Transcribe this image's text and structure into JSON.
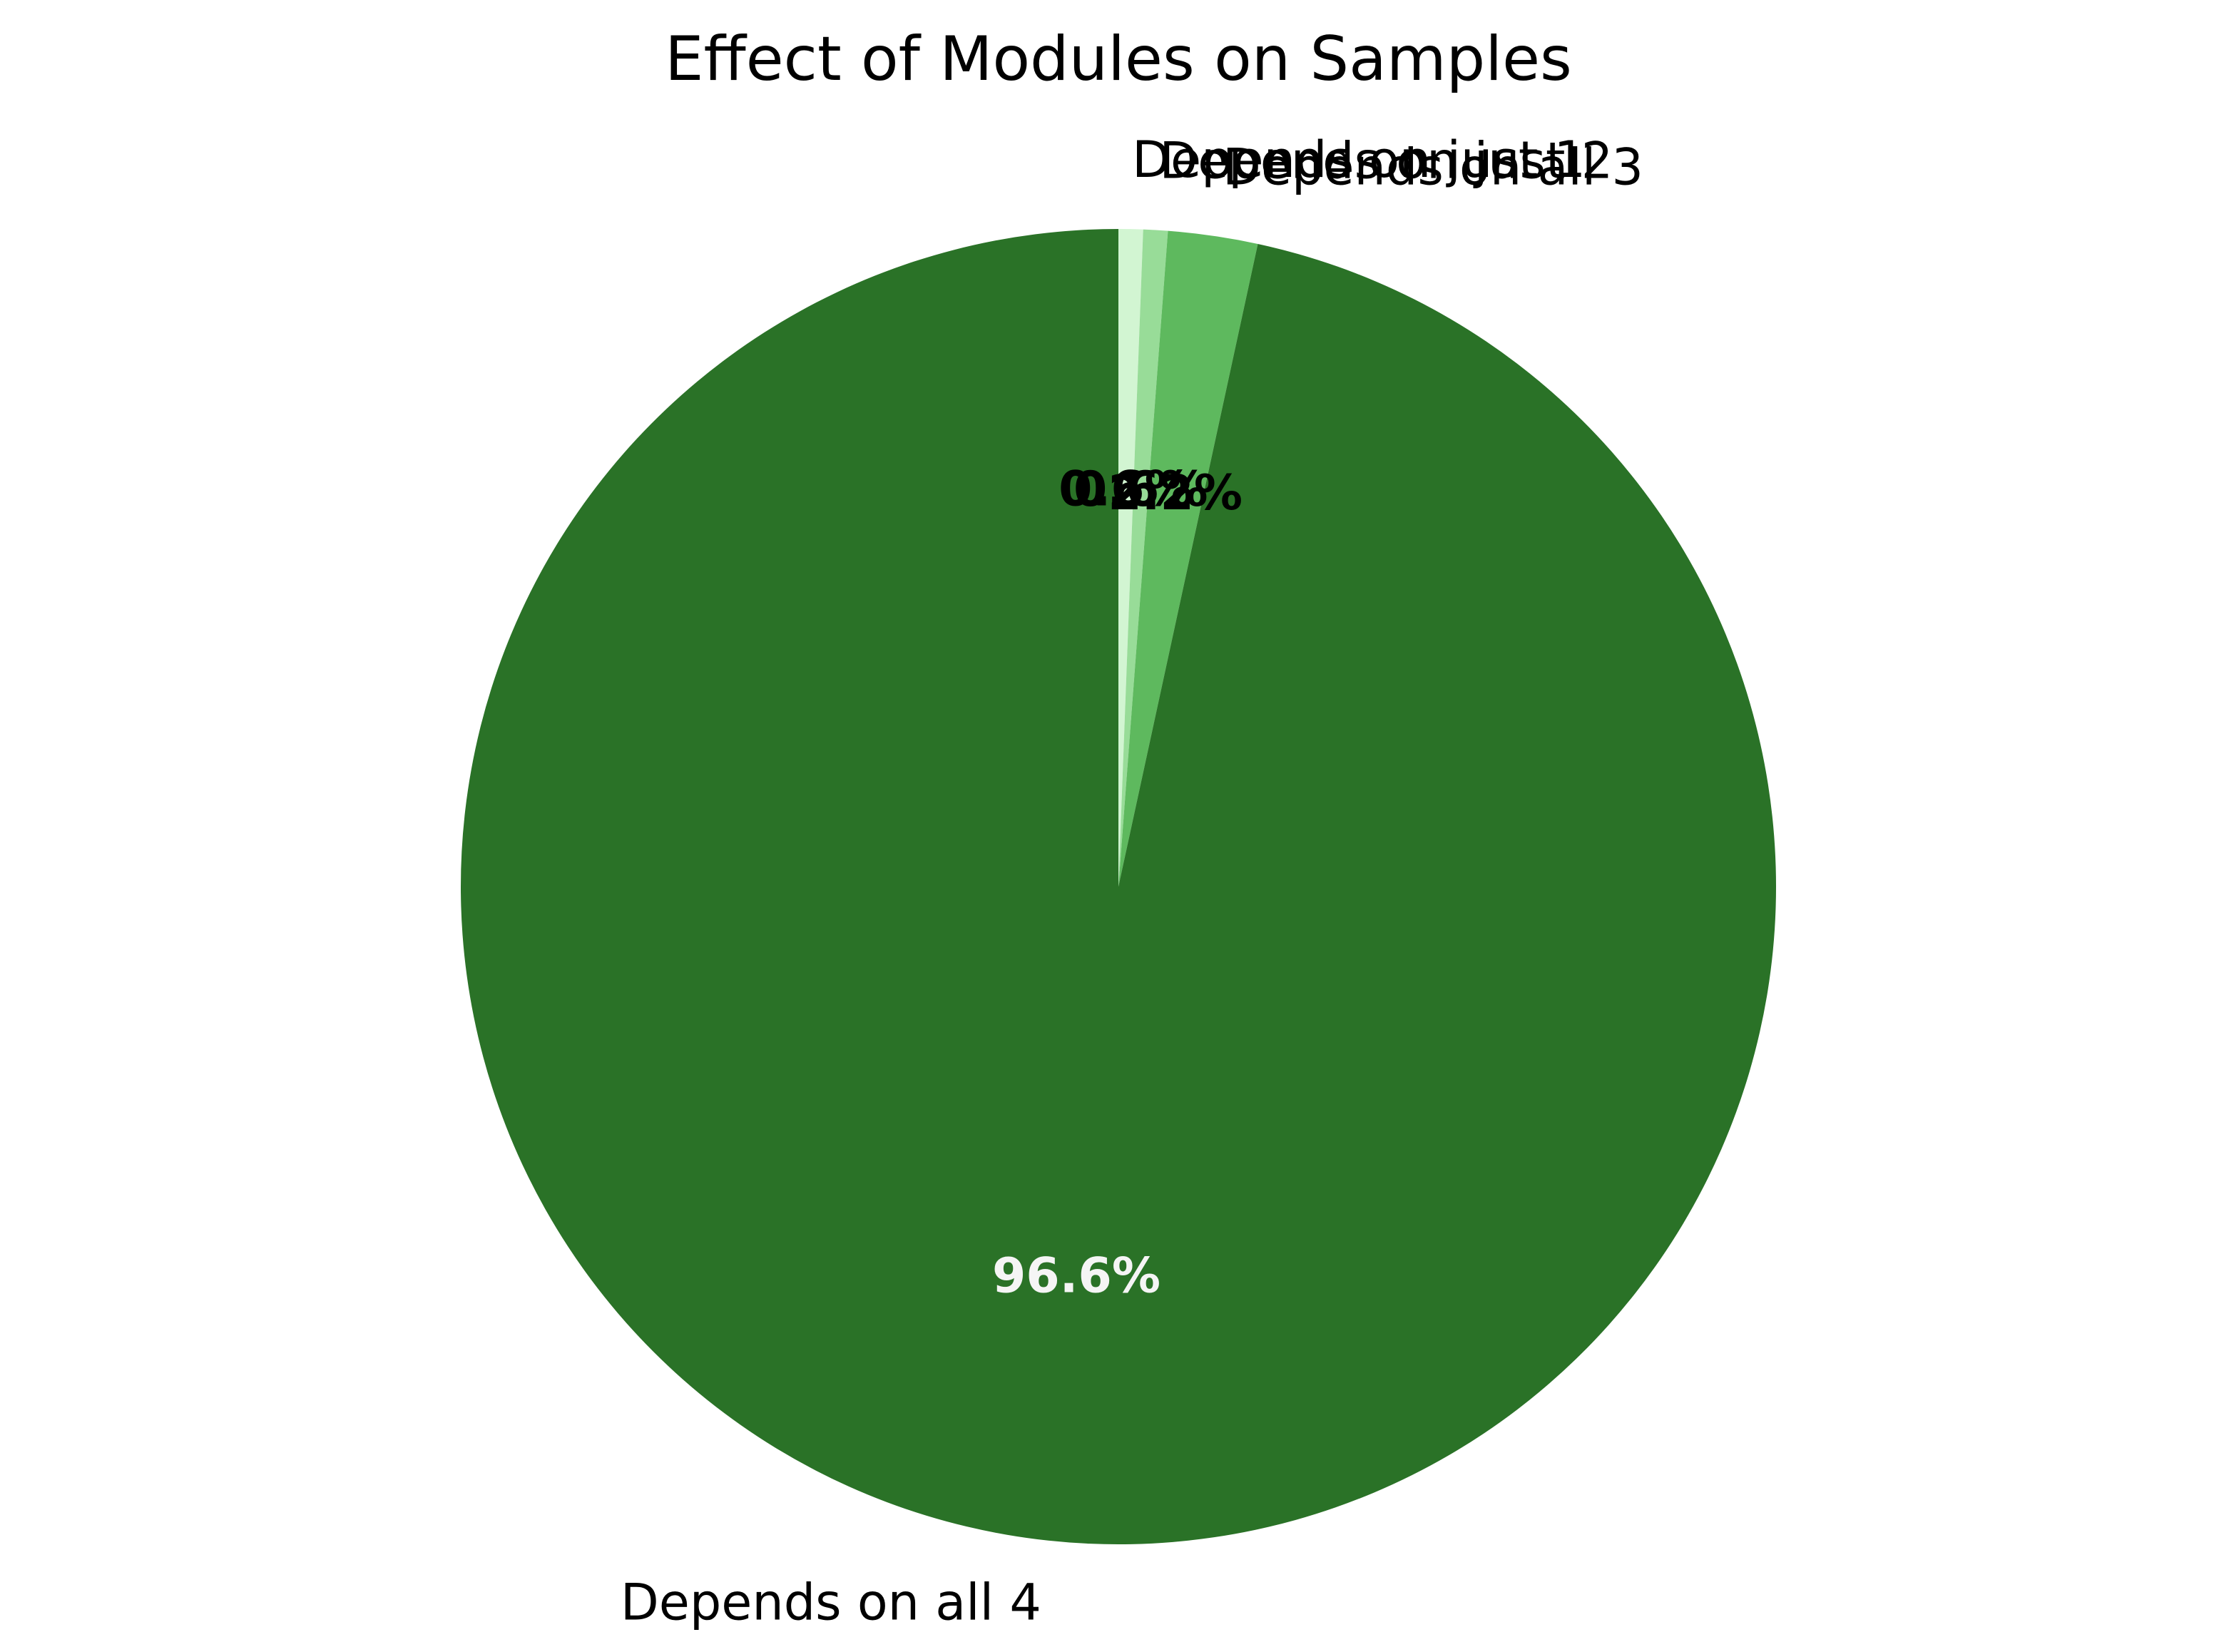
{
  "chart_data": {
    "type": "pie",
    "title": "Effect of Modules on Samples",
    "start_angle_deg": 90,
    "direction": "clockwise",
    "slices": [
      {
        "label": "Depends on just 1",
        "value": 0.6,
        "pct_label": "0.6%",
        "color": "#d2f5d2",
        "pct_color": "#000000"
      },
      {
        "label": "Depends on just 2",
        "value": 0.6,
        "pct_label": "0.6%",
        "color": "#98dc98",
        "pct_color": "#000000"
      },
      {
        "label": "Depends on all 3",
        "value": 2.2,
        "pct_label": "2.2%",
        "color": "#5eb95e",
        "pct_color": "#000000"
      },
      {
        "label": "Depends on all 4",
        "value": 96.6,
        "pct_label": "96.6%",
        "color": "#2a7227",
        "pct_color": "#f5f5f5"
      }
    ]
  }
}
